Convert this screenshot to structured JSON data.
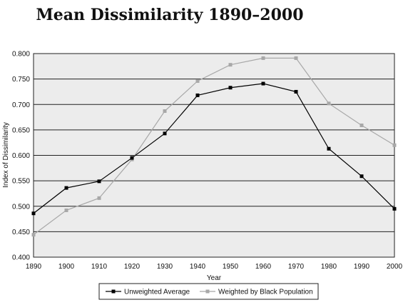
{
  "chart_data": {
    "type": "line",
    "title": "Mean Dissimilarity 1890–2000",
    "xlabel": "Year",
    "ylabel": "Index of Dissimilarity",
    "x": [
      "1890",
      "1900",
      "1910",
      "1920",
      "1930",
      "1940",
      "1950",
      "1960",
      "1970",
      "1980",
      "1990",
      "2000"
    ],
    "ylim": [
      0.4,
      0.8
    ],
    "yticks": [
      "0.400",
      "0.450",
      "0.500",
      "0.550",
      "0.600",
      "0.650",
      "0.700",
      "0.750",
      "0.800"
    ],
    "grid": true,
    "legend_position": "bottom",
    "series": [
      {
        "name": "Unweighted Average",
        "color": "#000000",
        "marker": "square",
        "values": [
          0.486,
          0.536,
          0.549,
          0.595,
          0.643,
          0.718,
          0.733,
          0.741,
          0.725,
          0.613,
          0.559,
          0.495
        ]
      },
      {
        "name": "Weighted by Black Population",
        "color": "#a8a8a8",
        "marker": "square",
        "values": [
          0.444,
          0.492,
          0.516,
          0.592,
          0.687,
          0.746,
          0.778,
          0.791,
          0.791,
          0.702,
          0.659,
          0.62
        ]
      }
    ]
  }
}
